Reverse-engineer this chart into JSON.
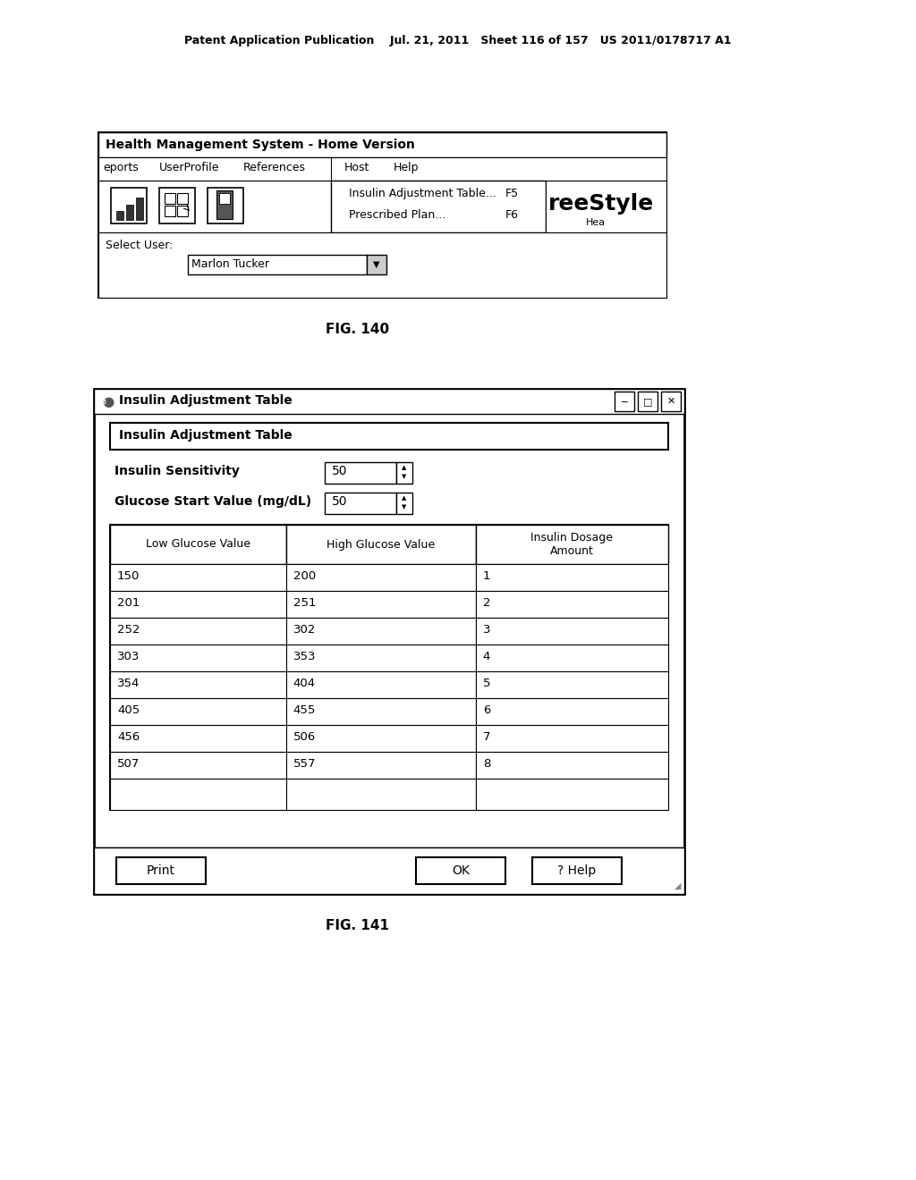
{
  "page_header": "Patent Application Publication    Jul. 21, 2011   Sheet 116 of 157   US 2011/0178717 A1",
  "fig140_label": "FIG. 140",
  "fig141_label": "FIG. 141",
  "fig140": {
    "title_bar": "Health Management System - Home Version",
    "menu_items": [
      "eports",
      "UserProfile",
      "References",
      "Host",
      "Help"
    ],
    "logo_text": "reeStyle",
    "logo_sub": "Hea",
    "select_user_label": "Select User:",
    "select_user_value": "Marlon Tucker"
  },
  "fig141": {
    "window_title": "Insulin Adjustment Table",
    "inner_title": "Insulin Adjustment Table",
    "field1_label": "Insulin Sensitivity",
    "field1_value": "50",
    "field2_label": "Glucose Start Value (mg/dL)",
    "field2_value": "50",
    "table_headers": [
      "Low Glucose Value",
      "High Glucose Value",
      "Insulin Dosage\nAmount"
    ],
    "table_data": [
      [
        "150",
        "200",
        "1"
      ],
      [
        "201",
        "251",
        "2"
      ],
      [
        "252",
        "302",
        "3"
      ],
      [
        "303",
        "353",
        "4"
      ],
      [
        "354",
        "404",
        "5"
      ],
      [
        "405",
        "455",
        "6"
      ],
      [
        "456",
        "506",
        "7"
      ],
      [
        "507",
        "557",
        "8"
      ]
    ],
    "buttons": [
      "Print",
      "OK",
      "? Help"
    ]
  },
  "bg_color": "#ffffff",
  "text_color": "#000000"
}
